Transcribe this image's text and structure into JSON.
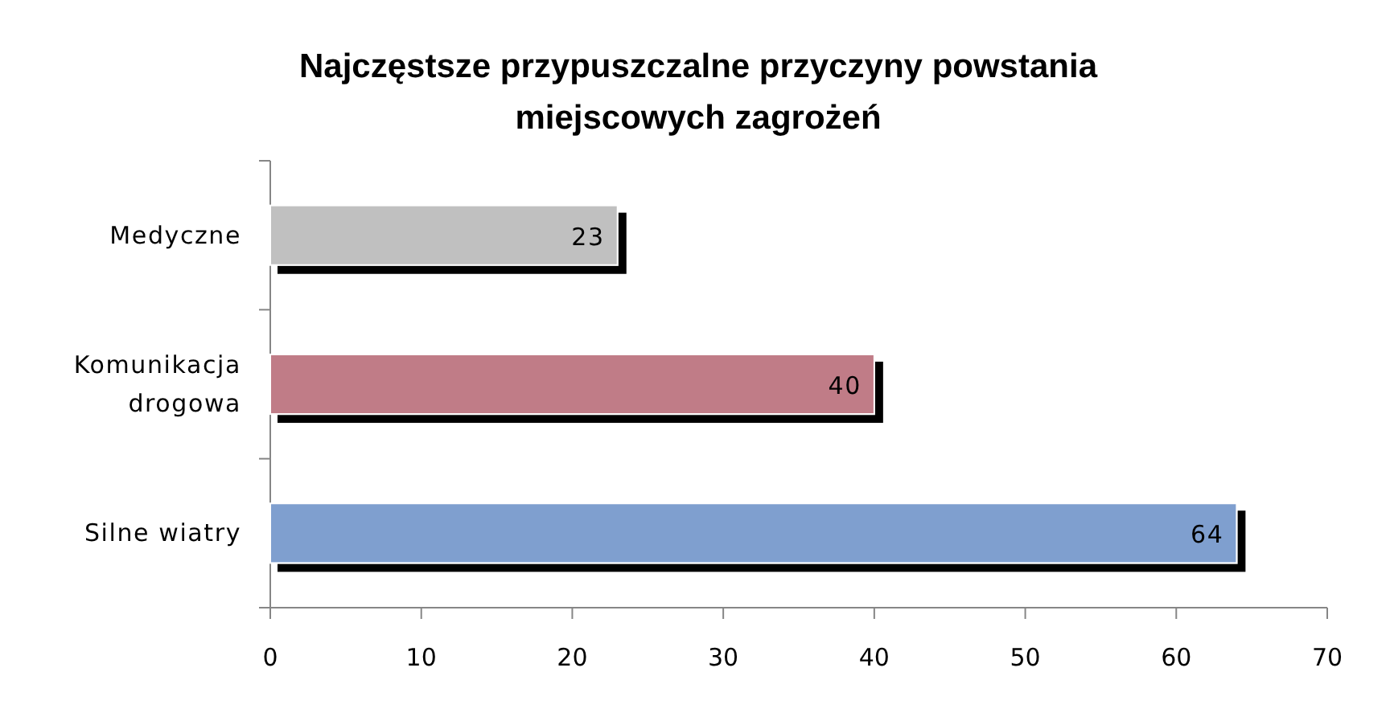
{
  "chart_data": {
    "type": "bar",
    "orientation": "horizontal",
    "title": "Najczęstsze przypuszczalne przyczyny powstania miejscowych zagrożeń",
    "categories": [
      "Medyczne",
      "Komunikacja drogowa",
      "Silne wiatry"
    ],
    "values": [
      23,
      40,
      64
    ],
    "colors": [
      "#c0c0c0",
      "#c07b87",
      "#7f9fcf"
    ],
    "xlim": [
      0,
      70
    ],
    "xticks": [
      0,
      10,
      20,
      30,
      40,
      50,
      60,
      70
    ],
    "data_labels": true
  }
}
